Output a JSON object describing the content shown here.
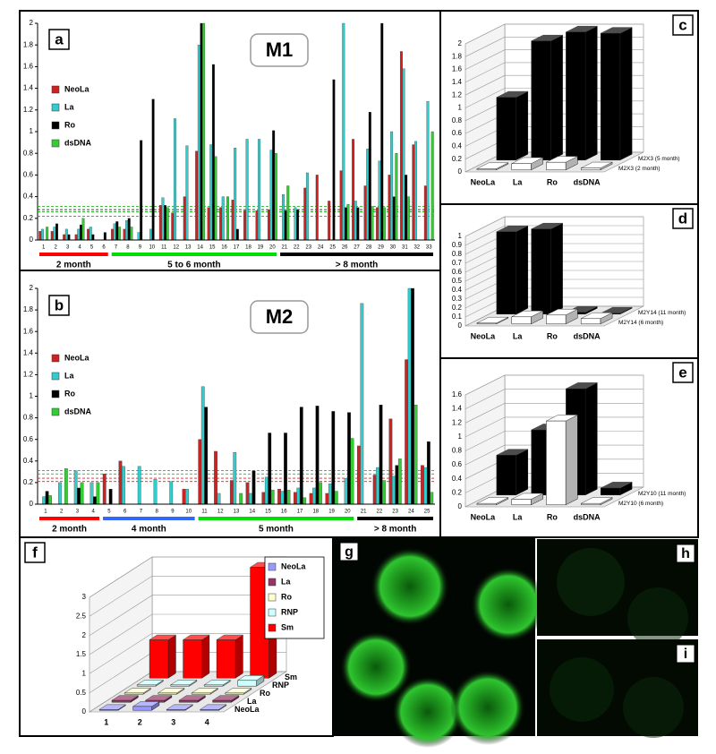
{
  "chart_data": [
    {
      "type": "bar",
      "panel": "a",
      "title": "M1",
      "groups": [
        {
          "label": "2 month",
          "color": "#ff0000",
          "categories": [
            "1",
            "2",
            "3",
            "4",
            "5",
            "6"
          ]
        },
        {
          "label": "5 to 6 month",
          "color": "#00dd00",
          "categories": [
            "7",
            "8",
            "9",
            "10",
            "11",
            "12",
            "13",
            "14",
            "15",
            "16",
            "17",
            "18",
            "19",
            "20"
          ]
        },
        {
          "label": "> 8 month",
          "color": "#000000",
          "categories": [
            "21",
            "22",
            "23",
            "24",
            "25",
            "26",
            "27",
            "28",
            "29",
            "30",
            "31",
            "32",
            "33"
          ]
        }
      ],
      "series": [
        {
          "name": "NeoLa",
          "color": "#cc2222",
          "values": [
            0.08,
            0.08,
            0.05,
            0.05,
            0.1,
            0,
            0.1,
            0.1,
            0,
            0,
            0.32,
            0.25,
            0.4,
            0.82,
            0.3,
            0.3,
            0.37,
            0.27,
            0.27,
            0.28,
            0,
            0,
            0.48,
            0.6,
            0.36,
            0.64,
            0.93,
            0.5,
            0.3,
            0.6,
            1.74,
            0.88,
            0.5
          ]
        },
        {
          "name": "La",
          "color": "#33cccc",
          "values": [
            0.1,
            0.12,
            0.1,
            0.1,
            0.12,
            0,
            0.15,
            0.18,
            0.07,
            0.1,
            0.39,
            1.12,
            0.87,
            1.8,
            0.88,
            0.4,
            0.85,
            0.93,
            0.93,
            0.83,
            0.42,
            0.3,
            0.62,
            0,
            0,
            2,
            0.36,
            0.84,
            0.73,
            1,
            1.58,
            0.91,
            1.28
          ]
        },
        {
          "name": "Ro",
          "color": "#000000",
          "values": [
            0,
            0.15,
            0.05,
            0.14,
            0.05,
            0.07,
            0.17,
            0.2,
            0.92,
            1.3,
            0.32,
            0,
            0,
            2,
            1.62,
            0,
            0.1,
            0,
            0,
            1.01,
            0.27,
            0.28,
            0,
            0,
            1.48,
            0.3,
            0.3,
            1.18,
            2,
            0.4,
            0.6,
            0,
            0
          ]
        },
        {
          "name": "dsDNA",
          "color": "#33cc33",
          "values": [
            0.12,
            0,
            0,
            0.2,
            0,
            0,
            0.12,
            0.12,
            0,
            0,
            0.3,
            0,
            0,
            2,
            0.77,
            0.4,
            0,
            0,
            0,
            0.8,
            0.5,
            0,
            0,
            0,
            0,
            0.33,
            0,
            0.31,
            0.3,
            0.8,
            0.4,
            0,
            1
          ]
        }
      ],
      "ylim": [
        0,
        2
      ],
      "yticks": [
        0,
        0.2,
        0.4,
        0.6,
        0.8,
        1,
        1.2,
        1.4,
        1.6,
        1.8,
        2
      ],
      "legend": "upper left",
      "cutoffs": [
        {
          "color": "#00aa00",
          "value": 0.31
        },
        {
          "color": "#000000",
          "value": 0.28
        },
        {
          "color": "#00aa00",
          "value": 0.26
        },
        {
          "color": "#dd2222",
          "value": 0.22
        }
      ]
    },
    {
      "type": "bar",
      "panel": "b",
      "title": "M2",
      "groups": [
        {
          "label": "2 month",
          "color": "#ff0000",
          "categories": [
            "1",
            "2",
            "3",
            "4"
          ]
        },
        {
          "label": "4 month",
          "color": "#3366ff",
          "categories": [
            "5",
            "6",
            "7",
            "8",
            "9",
            "10"
          ]
        },
        {
          "label": "5 month",
          "color": "#00dd00",
          "categories": [
            "11",
            "12",
            "13",
            "14",
            "15",
            "16",
            "17",
            "18",
            "19",
            "20"
          ]
        },
        {
          "label": "> 8 month",
          "color": "#000000",
          "categories": [
            "21",
            "22",
            "23",
            "24",
            "25"
          ]
        }
      ],
      "series": [
        {
          "name": "NeoLa",
          "color": "#cc2222",
          "values": [
            0,
            0,
            0,
            0,
            0.28,
            0.4,
            0,
            0,
            0,
            0.14,
            0.6,
            0.49,
            0.22,
            0.2,
            0.11,
            0.14,
            0.11,
            0.1,
            0.1,
            0,
            0.54,
            0.27,
            0.79,
            1.34,
            0.36
          ]
        },
        {
          "name": "La",
          "color": "#33cccc",
          "values": [
            0.07,
            0.2,
            0.31,
            0.2,
            0,
            0.35,
            0.35,
            0.23,
            0.21,
            0.14,
            1.09,
            0.1,
            0.48,
            0.1,
            0.25,
            0.12,
            0.15,
            0.15,
            0.19,
            0.24,
            1.86,
            0.34,
            0.26,
            2,
            0.34
          ]
        },
        {
          "name": "Ro",
          "color": "#000000",
          "values": [
            0.12,
            0,
            0.15,
            0.07,
            0.14,
            0,
            0,
            0,
            0,
            0,
            0.9,
            0,
            0,
            0.31,
            0.66,
            0.66,
            0.9,
            0.91,
            0.86,
            0.85,
            0,
            0.92,
            0.36,
            2,
            0.58
          ]
        },
        {
          "name": "dsDNA",
          "color": "#33cc33",
          "values": [
            0.08,
            0.33,
            0.2,
            0.2,
            0,
            0,
            0,
            0,
            0,
            0,
            0,
            0,
            0.1,
            0,
            0.13,
            0.13,
            0.06,
            0.2,
            0.12,
            0.61,
            0,
            0.22,
            0.42,
            0.92,
            0.11
          ]
        }
      ],
      "ylim": [
        0,
        2
      ],
      "yticks": [
        0,
        0.2,
        0.4,
        0.6,
        0.8,
        1,
        1.2,
        1.4,
        1.6,
        1.8,
        2
      ],
      "legend": "upper left",
      "cutoffs": [
        {
          "color": "#00aa00",
          "value": 0.31
        },
        {
          "color": "#00aa00",
          "value": 0.28
        },
        {
          "color": "#dd2222",
          "value": 0.24
        },
        {
          "color": "#dd2222",
          "value": 0.21
        }
      ]
    },
    {
      "type": "bar3d",
      "panel": "c",
      "categories": [
        "NeoLa",
        "La",
        "Ro",
        "dsDNA"
      ],
      "series": [
        {
          "name": "M2X3 (2 month)",
          "color": "#ffffff",
          "values": [
            0.02,
            0.1,
            0.12,
            0.03
          ]
        },
        {
          "name": "M2X3 (5 month)",
          "color": "#000000",
          "values": [
            0.98,
            1.86,
            2,
            1.98
          ]
        }
      ],
      "ylim": [
        0,
        2
      ],
      "yticks": [
        0,
        0.2,
        0.4,
        0.6,
        0.8,
        1,
        1.2,
        1.4,
        1.6,
        1.8,
        2
      ]
    },
    {
      "type": "bar3d",
      "panel": "d",
      "categories": [
        "NeoLa",
        "La",
        "Ro",
        "dsDNA"
      ],
      "series": [
        {
          "name": "M2Y14 (6 month)",
          "color": "#ffffff",
          "values": [
            0.01,
            0.08,
            0.1,
            0.06
          ]
        },
        {
          "name": "M2Y14 (11 month)",
          "color": "#000000",
          "values": [
            0.92,
            0.95,
            0.02,
            0.01
          ]
        }
      ],
      "ylim": [
        0,
        1
      ],
      "yticks": [
        0,
        0.1,
        0.2,
        0.3,
        0.4,
        0.5,
        0.6,
        0.7,
        0.8,
        0.9,
        1
      ]
    },
    {
      "type": "bar3d",
      "panel": "e",
      "categories": [
        "NeoLa",
        "La",
        "Ro",
        "dsDNA"
      ],
      "series": [
        {
          "name": "M2Y10 (6 month)",
          "color": "#ffffff",
          "values": [
            0.02,
            0.08,
            1.2,
            0.02
          ]
        },
        {
          "name": "M2Y10 (11 month)",
          "color": "#000000",
          "values": [
            0.57,
            0.93,
            1.52,
            0.1
          ]
        }
      ],
      "ylim": [
        0,
        1.6
      ],
      "yticks": [
        0,
        0.2,
        0.4,
        0.6,
        0.8,
        1,
        1.2,
        1.4,
        1.6
      ]
    },
    {
      "type": "bar3d",
      "panel": "f",
      "categories": [
        "1",
        "2",
        "3",
        "4"
      ],
      "series": [
        {
          "name": "NeoLa",
          "color": "#9999ff",
          "values": [
            0.02,
            0.1,
            0.02,
            0.02
          ]
        },
        {
          "name": "La",
          "color": "#993366",
          "values": [
            0.05,
            0.05,
            0.05,
            0.05
          ]
        },
        {
          "name": "Ro",
          "color": "#ffffcc",
          "values": [
            0.03,
            0.03,
            0.03,
            0.03
          ]
        },
        {
          "name": "RNP",
          "color": "#ccffff",
          "values": [
            0.03,
            0.03,
            0.03,
            0.15
          ]
        },
        {
          "name": "Sm",
          "color": "#ff0000",
          "values": [
            1,
            1,
            1,
            2.9
          ]
        }
      ],
      "ylim": [
        0,
        3
      ],
      "yticks": [
        0,
        0.5,
        1,
        1.5,
        2,
        2.5,
        3
      ],
      "legend": "upper right"
    }
  ],
  "images": [
    {
      "panel": "g"
    },
    {
      "panel": "h"
    },
    {
      "panel": "i"
    }
  ]
}
